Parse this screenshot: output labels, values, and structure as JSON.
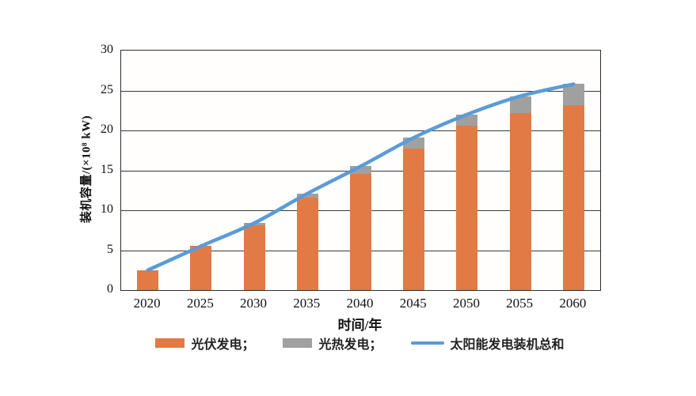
{
  "chart_data": {
    "type": "bar",
    "subtype": "stacked-bar-with-line",
    "title": "",
    "xlabel": "时间/年",
    "ylabel": "装机容量/(×10⁸ kW)",
    "categories": [
      "2020",
      "2025",
      "2030",
      "2035",
      "2040",
      "2045",
      "2050",
      "2055",
      "2060"
    ],
    "series": [
      {
        "name": "光伏发电",
        "type": "bar",
        "color": "#E27A45",
        "values": [
          2.5,
          5.5,
          8.1,
          11.6,
          14.6,
          17.7,
          20.6,
          22.2,
          23.2
        ]
      },
      {
        "name": "光热发电",
        "type": "bar",
        "color": "#A0A0A0",
        "values": [
          0,
          0,
          0.3,
          0.5,
          0.9,
          1.4,
          1.4,
          2.1,
          2.6
        ]
      },
      {
        "name": "太阳能发电装机总和",
        "type": "line",
        "color": "#5B9BD5",
        "values": [
          2.5,
          5.5,
          8.4,
          12.1,
          15.5,
          19.1,
          22.0,
          24.3,
          25.8
        ]
      }
    ],
    "ylim": [
      0,
      30
    ],
    "yticks": [
      0,
      5,
      10,
      15,
      20,
      25,
      30
    ],
    "grid": true,
    "plot_border": true,
    "legend_position": "bottom"
  },
  "legend": {
    "items": [
      {
        "label": "光伏发电；",
        "swatch": "bar",
        "color": "#E27A45"
      },
      {
        "label": "光热发电；",
        "swatch": "bar",
        "color": "#A0A0A0"
      },
      {
        "label": "太阳能发电装机总和",
        "swatch": "line",
        "color": "#5B9BD5"
      }
    ]
  },
  "colors": {
    "pv_bar": "#E27A45",
    "csp_bar": "#A0A0A0",
    "total_line": "#5B9BD5",
    "axis": "#2e2e2e",
    "background": "#ffffff"
  }
}
